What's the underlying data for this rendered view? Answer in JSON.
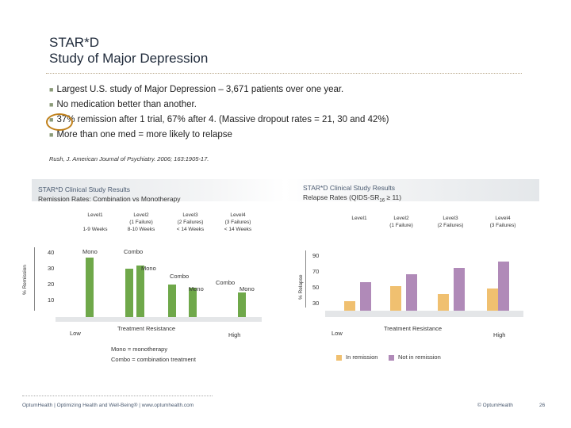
{
  "slide": {
    "title_line1": "STAR*D",
    "title_line2": "Study of Major Depression",
    "bullets": [
      "Largest U.S. study of Major Depression – 3,671 patients over one year.",
      "No medication better than another.",
      "37% remission after 1 trial, 67% after 4. (Massive dropout rates = 21, 30 and 42%)",
      "More than one med = more likely to relapse"
    ],
    "citation": "Rush, J. American Journal of Psychiatry. 2006; 163:1905-17.",
    "footer_left": "OptumHealth | Optimizing Health and Well-Being® | www.optumhealth.com",
    "footer_logo": "© OptumHealth",
    "page_number": "26"
  },
  "left_panel": {
    "header": "STAR*D Clinical Study Results",
    "subtitle": "Remission Rates: Combination vs Monotherapy",
    "levels": [
      {
        "name": "Level1",
        "detail": "",
        "weeks": "1-9 Weeks"
      },
      {
        "name": "Level2",
        "detail": "(1 Failure)",
        "weeks": "8-10 Weeks"
      },
      {
        "name": "Level3",
        "detail": "(2 Failures)",
        "weeks": "< 14 Weeks"
      },
      {
        "name": "Level4",
        "detail": "(3 Failures)",
        "weeks": "< 14 Weeks"
      }
    ],
    "ylabel": "% Remission",
    "yticks": [
      "40",
      "30",
      "20",
      "10"
    ],
    "bar_labels": {
      "mono1": "Mono",
      "combo1": "Combo",
      "mono2": "Mono",
      "combo2": "Combo",
      "mono3": "Mono",
      "combo3": "Combo",
      "mono4": "Mono"
    },
    "axis_low": "Low",
    "axis_mid": "Treatment Resistance",
    "axis_high": "High",
    "note1": "Mono = monotherapy",
    "note2": "Combo = combination treatment"
  },
  "right_panel": {
    "header": "STAR*D Clinical Study Results",
    "subtitle_prefix": "Relapse Rates (QIDS-SR",
    "subtitle_sub": "16",
    "subtitle_suffix": " ≥ 11)",
    "levels": [
      {
        "name": "Level1",
        "detail": ""
      },
      {
        "name": "Level2",
        "detail": "(1 Failure)"
      },
      {
        "name": "Level3",
        "detail": "(2 Failures)"
      },
      {
        "name": "Level4",
        "detail": "(3 Failures)"
      }
    ],
    "ylabel": "% Relapse",
    "yticks": [
      "90",
      "70",
      "50",
      "30"
    ],
    "axis_low": "Low",
    "axis_mid": "Treatment Resistance",
    "axis_high": "High",
    "legend_in": "In remission",
    "legend_not": "Not in remission"
  },
  "colors": {
    "mono": "#6fa84a",
    "in_remission": "#f0c070",
    "not_in_remission": "#b08ab8",
    "accent_circle": "#c0801a"
  },
  "chart_data": [
    {
      "type": "bar",
      "title": "Remission Rates: Combination vs Monotherapy",
      "ylabel": "% Remission",
      "xlabel": "Treatment Resistance",
      "ylim": [
        10,
        40
      ],
      "series": [
        {
          "name": "Mono",
          "values": [
            37,
            30,
            18,
            15
          ]
        },
        {
          "name": "Combo",
          "values": [
            null,
            32,
            20,
            null
          ]
        }
      ],
      "categories": [
        "Level1",
        "Level2",
        "Level3",
        "Level4"
      ]
    },
    {
      "type": "bar",
      "title": "Relapse Rates (QIDS-SR16 ≥ 11)",
      "ylabel": "% Relapse",
      "xlabel": "Treatment Resistance",
      "ylim": [
        30,
        90
      ],
      "categories": [
        "Level1",
        "Level2",
        "Level3",
        "Level4"
      ],
      "series": [
        {
          "name": "In remission",
          "values": [
            34,
            53,
            43,
            50
          ]
        },
        {
          "name": "Not in remission",
          "values": [
            58,
            68,
            76,
            84
          ]
        }
      ]
    }
  ]
}
